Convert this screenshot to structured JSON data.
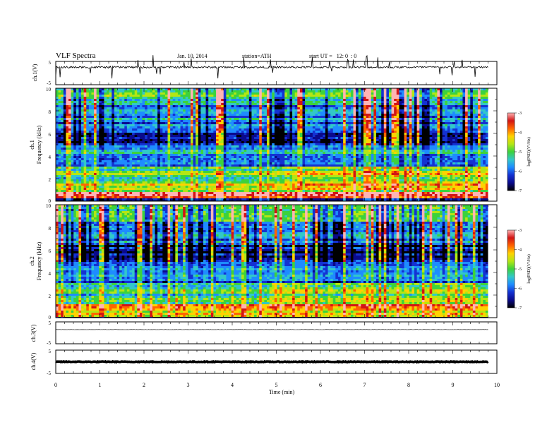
{
  "header": {
    "title": "VLF Spectra",
    "date": "Jan. 10, 2014",
    "station": "station=ATH",
    "start": "start UT =   12: 0  : 0"
  },
  "xaxis": {
    "label": "Time (min)",
    "ticks": [
      "0",
      "1",
      "2",
      "3",
      "4",
      "5",
      "6",
      "7",
      "8",
      "9",
      "10"
    ]
  },
  "panels": {
    "ch1_wave": {
      "ylabel": "ch.1(V)",
      "ticks": [
        "5",
        "-5"
      ]
    },
    "ch1_spec": {
      "ylabel_ch": "ch.1",
      "ylabel": "Frequency (kHz)",
      "ticks": [
        "10",
        "8",
        "6",
        "4",
        "2",
        "0"
      ]
    },
    "ch2_spec": {
      "ylabel_ch": "ch.2",
      "ylabel": "Frequency (kHz)",
      "ticks": [
        "10",
        "8",
        "6",
        "4",
        "2",
        "0"
      ]
    },
    "ch3_wave": {
      "ylabel": "ch.3(V)",
      "ticks": [
        "5",
        "-5"
      ]
    },
    "ch4_wave": {
      "ylabel": "ch.4(V)",
      "ticks": [
        "5",
        "-5"
      ]
    }
  },
  "colorbar": {
    "label": "log(PSD)(V²/Hz)",
    "ticks": [
      "-3",
      "-4",
      "-5",
      "-6",
      "-7"
    ]
  },
  "colors": {
    "spectrum_scale": [
      "#000000",
      "#0a0a8c",
      "#1432d2",
      "#1e8cff",
      "#32c8c8",
      "#3cd23c",
      "#b4e614",
      "#ffd200",
      "#ff6400",
      "#d21414",
      "#ffb4b4"
    ],
    "trace": "#000000"
  },
  "chart_data": {
    "type": "heatmap",
    "xlabel": "Time (min)",
    "xlim": [
      0,
      10
    ],
    "data_end_min": 9.8,
    "channels": [
      {
        "channel": "ch.1",
        "ylabel": "Frequency (kHz)",
        "ylim": [
          0,
          10
        ],
        "psd_log_range": [
          -7,
          -3
        ],
        "frequency_bands_kHz": [
          {
            "range": [
              0,
              0.3
            ],
            "log_psd": -6.5
          },
          {
            "range": [
              0.3,
              0.8
            ],
            "log_psd": -3.5
          },
          {
            "range": [
              0.8,
              1.5
            ],
            "log_psd": -4.5
          },
          {
            "range": [
              1.5,
              3.0
            ],
            "log_psd": -5.0
          },
          {
            "range": [
              3.0,
              5.0
            ],
            "log_psd": -5.6
          },
          {
            "range": [
              5.0,
              6.5
            ],
            "log_psd": -6.3
          },
          {
            "range": [
              6.5,
              8.5
            ],
            "log_psd": -5.8
          },
          {
            "range": [
              8.5,
              10
            ],
            "log_psd": -5.2
          }
        ]
      },
      {
        "channel": "ch.2",
        "ylabel": "Frequency (kHz)",
        "ylim": [
          0,
          10
        ],
        "psd_log_range": [
          -7,
          -3
        ],
        "frequency_bands_kHz": [
          {
            "range": [
              0,
              0.2
            ],
            "log_psd": -4.5
          },
          {
            "range": [
              0.2,
              1.2
            ],
            "log_psd": -4.2
          },
          {
            "range": [
              1.2,
              3.0
            ],
            "log_psd": -5.1
          },
          {
            "range": [
              3.0,
              5.0
            ],
            "log_psd": -5.8
          },
          {
            "range": [
              5.0,
              6.5
            ],
            "log_psd": -6.5
          },
          {
            "range": [
              6.5,
              8.5
            ],
            "log_psd": -5.8
          },
          {
            "range": [
              8.5,
              10
            ],
            "log_psd": -5.2
          }
        ]
      }
    ],
    "waveforms": [
      {
        "channel": "ch.1",
        "ylabel": "ch.1(V)",
        "ylim": [
          -5,
          5
        ],
        "level_V": 2.5,
        "noise": "spiky"
      },
      {
        "channel": "ch.3",
        "ylabel": "ch.3(V)",
        "ylim": [
          -5,
          5
        ],
        "level_V": 1.5,
        "noise": "flat"
      },
      {
        "channel": "ch.4",
        "ylabel": "ch.4(V)",
        "ylim": [
          -5,
          5
        ],
        "level_V": 0.0,
        "noise": "thick"
      }
    ]
  }
}
